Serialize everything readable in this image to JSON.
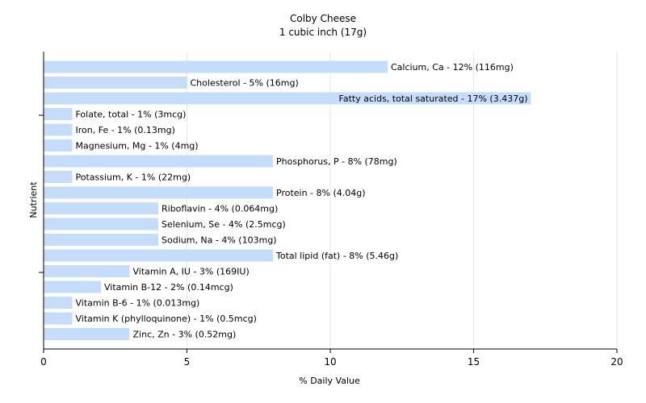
{
  "chart_data": {
    "type": "bar",
    "orientation": "horizontal",
    "title": "Colby Cheese",
    "subtitle": "1 cubic inch (17g)",
    "xlabel": "% Daily Value",
    "ylabel": "Nutrient",
    "xlim": [
      0,
      20
    ],
    "xticks": [
      0,
      5,
      10,
      15,
      20
    ],
    "grid": true,
    "bar_color": "#c5dcfa",
    "grid_color": "#e6e6e6",
    "bars": [
      {
        "label": "Calcium, Ca - 12% (116mg)",
        "value": 12
      },
      {
        "label": "Cholesterol - 5% (16mg)",
        "value": 5
      },
      {
        "label": "Fatty acids, total saturated - 17% (3.437g)",
        "value": 17
      },
      {
        "label": "Folate, total - 1% (3mcg)",
        "value": 1
      },
      {
        "label": "Iron, Fe - 1% (0.13mg)",
        "value": 1
      },
      {
        "label": "Magnesium, Mg - 1% (4mg)",
        "value": 1
      },
      {
        "label": "Phosphorus, P - 8% (78mg)",
        "value": 8
      },
      {
        "label": "Potassium, K - 1% (22mg)",
        "value": 1
      },
      {
        "label": "Protein - 8% (4.04g)",
        "value": 8
      },
      {
        "label": "Riboflavin - 4% (0.064mg)",
        "value": 4
      },
      {
        "label": "Selenium, Se - 4% (2.5mcg)",
        "value": 4
      },
      {
        "label": "Sodium, Na - 4% (103mg)",
        "value": 4
      },
      {
        "label": "Total lipid (fat) - 8% (5.46g)",
        "value": 8
      },
      {
        "label": "Vitamin A, IU - 3% (169IU)",
        "value": 3
      },
      {
        "label": "Vitamin B-12 - 2% (0.14mcg)",
        "value": 2
      },
      {
        "label": "Vitamin B-6 - 1% (0.013mg)",
        "value": 1
      },
      {
        "label": "Vitamin K (phylloquinone) - 1% (0.5mcg)",
        "value": 1
      },
      {
        "label": "Zinc, Zn - 3% (0.52mg)",
        "value": 3
      }
    ]
  }
}
